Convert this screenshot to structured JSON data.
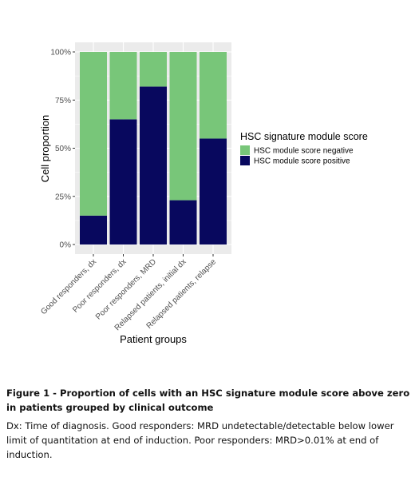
{
  "chart_data": {
    "type": "bar",
    "stacked": true,
    "percent": true,
    "categories": [
      "Good responders, dx",
      "Poor responders, dx",
      "Poor responders, MRD",
      "Relapsed patients, initial dx",
      "Relapsed patients, relapse"
    ],
    "series": [
      {
        "name": "HSC module score negative",
        "color": "#78c679",
        "values": [
          0.85,
          0.35,
          0.18,
          0.77,
          0.45
        ]
      },
      {
        "name": "HSC module score positive",
        "color": "#08085e",
        "values": [
          0.15,
          0.65,
          0.82,
          0.23,
          0.55
        ]
      }
    ],
    "xlabel": "Patient groups",
    "ylabel": "Cell proportion",
    "ylim": [
      0,
      1
    ],
    "yticks": [
      "0%",
      "25%",
      "50%",
      "75%",
      "100%"
    ],
    "legend_title": "HSC signature module score",
    "legend_position": "right",
    "grid": true
  },
  "caption": {
    "title": "Figure  1 - Proportion of cells with an HSC signature module score above zero in patients grouped by clinical outcome",
    "body": "Dx: Time of diagnosis. Good responders: MRD undetectable/detectable below lower limit of quantitation at end of induction. Poor responders: MRD>0.01% at end of induction."
  }
}
